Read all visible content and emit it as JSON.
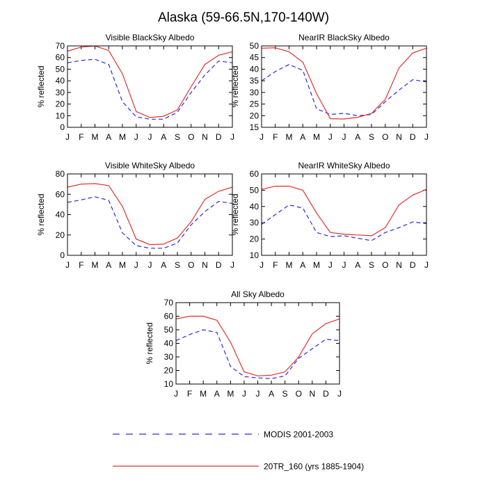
{
  "figure": {
    "title": "Alaska (59-66.5N,170-140W)"
  },
  "colors": {
    "modis": "#2b2bd6",
    "model": "#e03030"
  },
  "legend": {
    "modis_label": "MODIS 2001-2003",
    "model_label": "20TR_160 (yrs 1885-1904)"
  },
  "chart_data": [
    {
      "type": "line",
      "title": "Visible BlackSky Albedo",
      "ylabel": "% reflected",
      "categories": [
        "J",
        "F",
        "M",
        "A",
        "M",
        "J",
        "J",
        "A",
        "S",
        "O",
        "N",
        "D",
        "J"
      ],
      "ylim": [
        0,
        70
      ],
      "yticks": [
        0,
        10,
        20,
        30,
        40,
        50,
        60,
        70
      ],
      "series": [
        {
          "name": "MODIS 2001-2003",
          "style": "dashed",
          "values": [
            55.5,
            57.5,
            58.5,
            54,
            22,
            9,
            7,
            7,
            13,
            30,
            45,
            57,
            55.5
          ]
        },
        {
          "name": "20TR_160 (yrs 1885-1904)",
          "style": "solid",
          "values": [
            65.5,
            69,
            70,
            66,
            46,
            13.5,
            8.5,
            9.5,
            15,
            35,
            54,
            62,
            65
          ]
        }
      ]
    },
    {
      "type": "line",
      "title": "NearIR BlackSky Albedo",
      "ylabel": "% reflected",
      "categories": [
        "J",
        "F",
        "M",
        "A",
        "M",
        "J",
        "J",
        "A",
        "S",
        "O",
        "N",
        "D",
        "J"
      ],
      "ylim": [
        15,
        50
      ],
      "yticks": [
        15,
        20,
        25,
        30,
        35,
        40,
        45,
        50
      ],
      "series": [
        {
          "name": "MODIS 2001-2003",
          "style": "dashed",
          "values": [
            35,
            39,
            42,
            39.5,
            23,
            20.5,
            21,
            20,
            20.5,
            26,
            31,
            35.5,
            34.5
          ]
        },
        {
          "name": "20TR_160 (yrs 1885-1904)",
          "style": "solid",
          "values": [
            49,
            49.2,
            47.5,
            43,
            29.5,
            18.7,
            18.6,
            19.3,
            21,
            27,
            40.5,
            47,
            49
          ]
        }
      ]
    },
    {
      "type": "line",
      "title": "Visible WhiteSky Albedo",
      "ylabel": "% reflected",
      "categories": [
        "J",
        "F",
        "M",
        "A",
        "M",
        "J",
        "J",
        "A",
        "S",
        "O",
        "N",
        "D",
        "J"
      ],
      "ylim": [
        0,
        80
      ],
      "yticks": [
        0,
        20,
        40,
        60,
        80
      ],
      "series": [
        {
          "name": "MODIS 2001-2003",
          "style": "dashed",
          "values": [
            52,
            54.5,
            57.5,
            54,
            22,
            9.5,
            7,
            7,
            12,
            30,
            43,
            53,
            51
          ]
        },
        {
          "name": "20TR_160 (yrs 1885-1904)",
          "style": "solid",
          "values": [
            67,
            70,
            70.5,
            68.5,
            48,
            16,
            10.5,
            11,
            17,
            33,
            55,
            63,
            67
          ]
        }
      ]
    },
    {
      "type": "line",
      "title": "NearIR WhiteSky Albedo",
      "ylabel": "% reflected",
      "categories": [
        "J",
        "F",
        "M",
        "A",
        "M",
        "J",
        "J",
        "A",
        "S",
        "O",
        "N",
        "D",
        "J"
      ],
      "ylim": [
        10,
        60
      ],
      "yticks": [
        10,
        20,
        30,
        40,
        50,
        60
      ],
      "series": [
        {
          "name": "MODIS 2001-2003",
          "style": "dashed",
          "values": [
            29,
            35,
            41,
            39,
            24,
            21.5,
            22,
            20.5,
            19,
            24,
            27,
            30.5,
            29.5
          ]
        },
        {
          "name": "20TR_160 (yrs 1885-1904)",
          "style": "solid",
          "values": [
            50.5,
            52.5,
            52.5,
            50,
            36,
            24,
            23,
            22.5,
            22,
            27,
            41,
            47,
            50.5
          ]
        }
      ]
    },
    {
      "type": "line",
      "title": "All Sky Albedo",
      "ylabel": "% reflected",
      "categories": [
        "J",
        "F",
        "M",
        "A",
        "M",
        "J",
        "J",
        "A",
        "S",
        "O",
        "N",
        "D",
        "J"
      ],
      "ylim": [
        10,
        70
      ],
      "yticks": [
        10,
        20,
        30,
        40,
        50,
        60,
        70
      ],
      "series": [
        {
          "name": "MODIS 2001-2003",
          "style": "dashed",
          "values": [
            42,
            46.5,
            50,
            48,
            23,
            15.5,
            14.5,
            14,
            16,
            29,
            36,
            43,
            42
          ]
        },
        {
          "name": "20TR_160 (yrs 1885-1904)",
          "style": "solid",
          "values": [
            58,
            60,
            60,
            57,
            41,
            19,
            16,
            16.5,
            19,
            30,
            47,
            54.5,
            58
          ]
        }
      ]
    }
  ]
}
